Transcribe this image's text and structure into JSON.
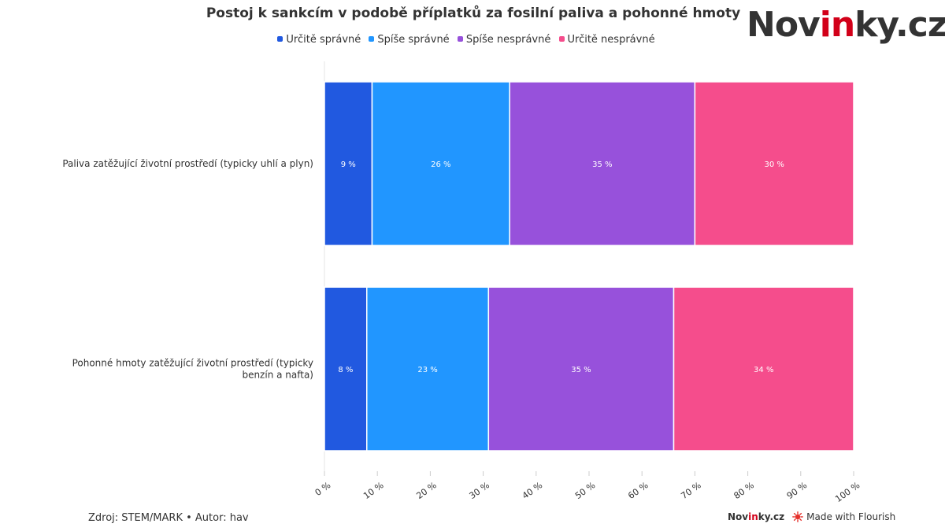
{
  "title": "Postoj k sankcím v podobě příplatků za fosilní paliva a pohonné hmoty",
  "brand": {
    "prefix": "Nov",
    "accent": "in",
    "suffix": "ky.cz"
  },
  "legend": [
    {
      "label": "Určitě správné",
      "color": "#2159e0"
    },
    {
      "label": "Spíše správné",
      "color": "#2196ff"
    },
    {
      "label": "Spíše nesprávné",
      "color": "#9751db"
    },
    {
      "label": "Určitě nesprávné",
      "color": "#f54d8c"
    }
  ],
  "chart_data": {
    "type": "bar",
    "orientation": "horizontal",
    "stacked": true,
    "title": "Postoj k sankcím v podobě příplatků za fosilní paliva a pohonné hmoty",
    "categories": [
      "Paliva zatěžující životní prostředí (typicky uhlí a plyn)",
      "Pohonné hmoty zatěžující životní prostředí (typicky benzín a nafta)"
    ],
    "series": [
      {
        "name": "Určitě správné",
        "color": "#2159e0",
        "values": [
          9,
          8
        ],
        "labels": [
          "9 %",
          "8 %"
        ]
      },
      {
        "name": "Spíše správné",
        "color": "#2196ff",
        "values": [
          26,
          23
        ],
        "labels": [
          "26 %",
          "23 %"
        ]
      },
      {
        "name": "Spíše nesprávné",
        "color": "#9751db",
        "values": [
          35,
          35
        ],
        "labels": [
          "35 %",
          "35 %"
        ]
      },
      {
        "name": "Určitě nesprávné",
        "color": "#f54d8c",
        "values": [
          30,
          34
        ],
        "labels": [
          "30 %",
          "34 %"
        ]
      }
    ],
    "xlim": [
      0,
      100
    ],
    "x_ticks": [
      "0 %",
      "10 %",
      "20 %",
      "30 %",
      "40 %",
      "50 %",
      "60 %",
      "70 %",
      "80 %",
      "90 %",
      "100 %"
    ],
    "legend_position": "top"
  },
  "footer": {
    "source": "Zdroj: STEM/MARK • Autor: hav",
    "credit_brand_prefix": "Nov",
    "credit_brand_accent": "in",
    "credit_brand_suffix": "ky.cz",
    "flourish": "Made with Flourish",
    "flourish_icon": "flourish-burst-icon"
  }
}
